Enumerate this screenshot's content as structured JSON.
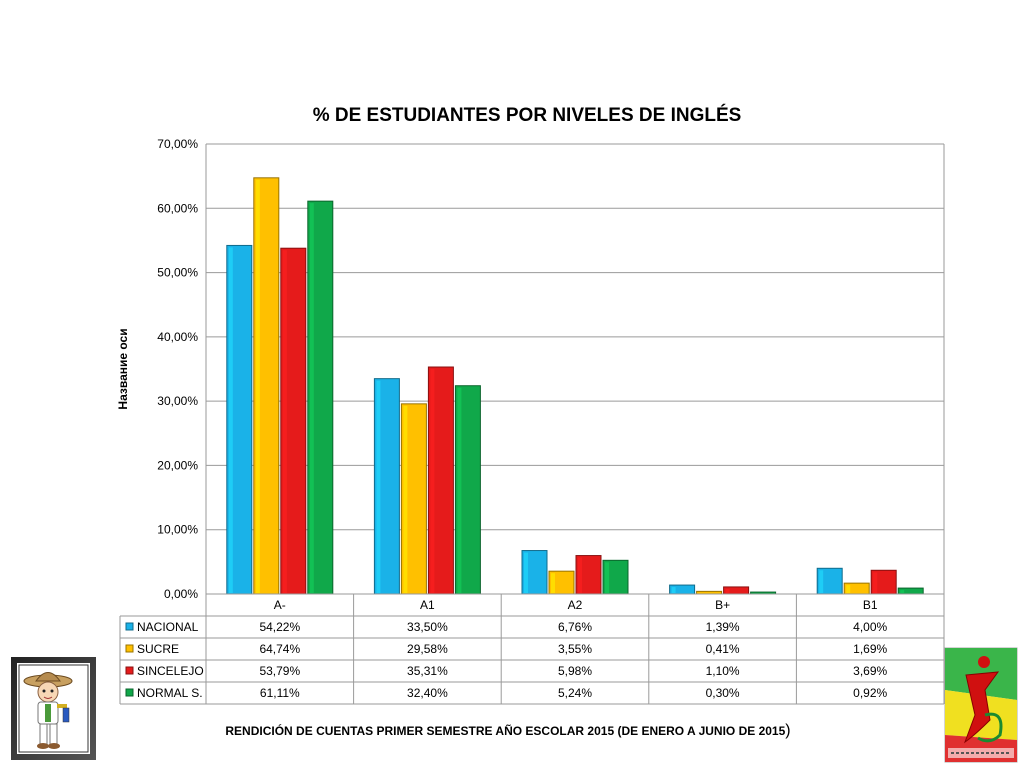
{
  "chart_data": {
    "type": "bar",
    "title": "% DE ESTUDIANTES POR NIVELES DE INGLÉS",
    "ylabel": "Название оси",
    "xlabel": "",
    "categories": [
      "A-",
      "A1",
      "A2",
      "B+",
      "B1"
    ],
    "ylim": [
      0,
      70
    ],
    "yticks": [
      "0,00%",
      "10,00%",
      "20,00%",
      "30,00%",
      "40,00%",
      "50,00%",
      "60,00%",
      "70,00%"
    ],
    "grid": true,
    "legend_placement": "data-table",
    "series": [
      {
        "name": "NACIONAL",
        "color": "#1ab2e8",
        "values": [
          54.22,
          33.5,
          6.76,
          1.39,
          4.0
        ],
        "labels": [
          "54,22%",
          "33,50%",
          "6,76%",
          "1,39%",
          "4,00%"
        ]
      },
      {
        "name": "SUCRE",
        "color": "#ffc000",
        "values": [
          64.74,
          29.58,
          3.55,
          0.41,
          1.69
        ],
        "labels": [
          "64,74%",
          "29,58%",
          "3,55%",
          "0,41%",
          "1,69%"
        ]
      },
      {
        "name": "SINCELEJO",
        "color": "#e51b1b",
        "values": [
          53.79,
          35.31,
          5.98,
          1.1,
          3.69
        ],
        "labels": [
          "53,79%",
          "35,31%",
          "5,98%",
          "1,10%",
          "3,69%"
        ]
      },
      {
        "name": "NORMAL S.",
        "color": "#10a84a",
        "values": [
          61.11,
          32.4,
          5.24,
          0.3,
          0.92
        ],
        "labels": [
          "61,11%",
          "32,40%",
          "5,24%",
          "0,30%",
          "0,92%"
        ]
      }
    ]
  },
  "footer": {
    "text": "RENDICIÓN DE CUENTAS PRIMER SEMESTRE AÑO ESCOLAR 2015 (DE ENERO A JUNIO DE 2015",
    "paren": ")"
  },
  "logos": {
    "left": "cartoon-student-drawing",
    "right": "school-emblem"
  }
}
